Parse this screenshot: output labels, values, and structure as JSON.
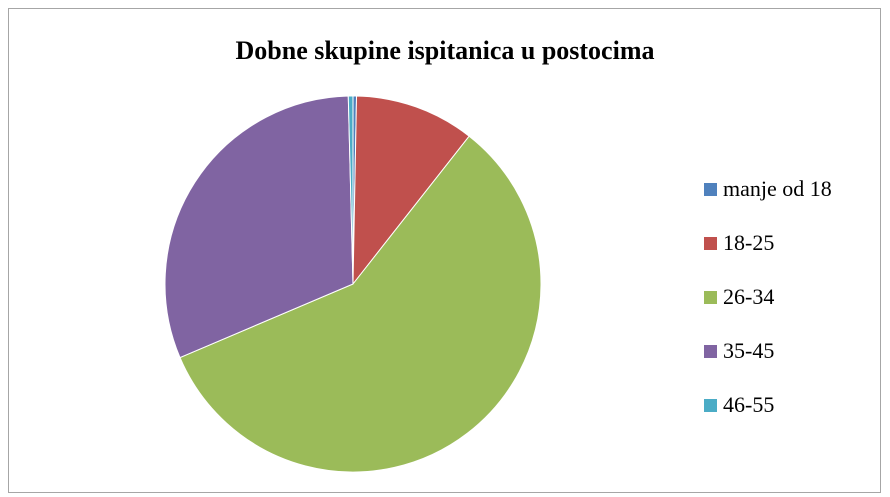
{
  "chart_data": {
    "type": "pie",
    "title": "Dobne skupine ispitanica u postocima",
    "categories": [
      "manje od 18",
      "18-25",
      "26-34",
      "35-45",
      "46-55"
    ],
    "values": [
      0.3,
      10.3,
      58.0,
      31.0,
      0.4
    ],
    "colors": [
      "#4f81bd",
      "#c0504d",
      "#9bbb59",
      "#8064a2",
      "#4bacc6"
    ],
    "legend_position": "right"
  }
}
